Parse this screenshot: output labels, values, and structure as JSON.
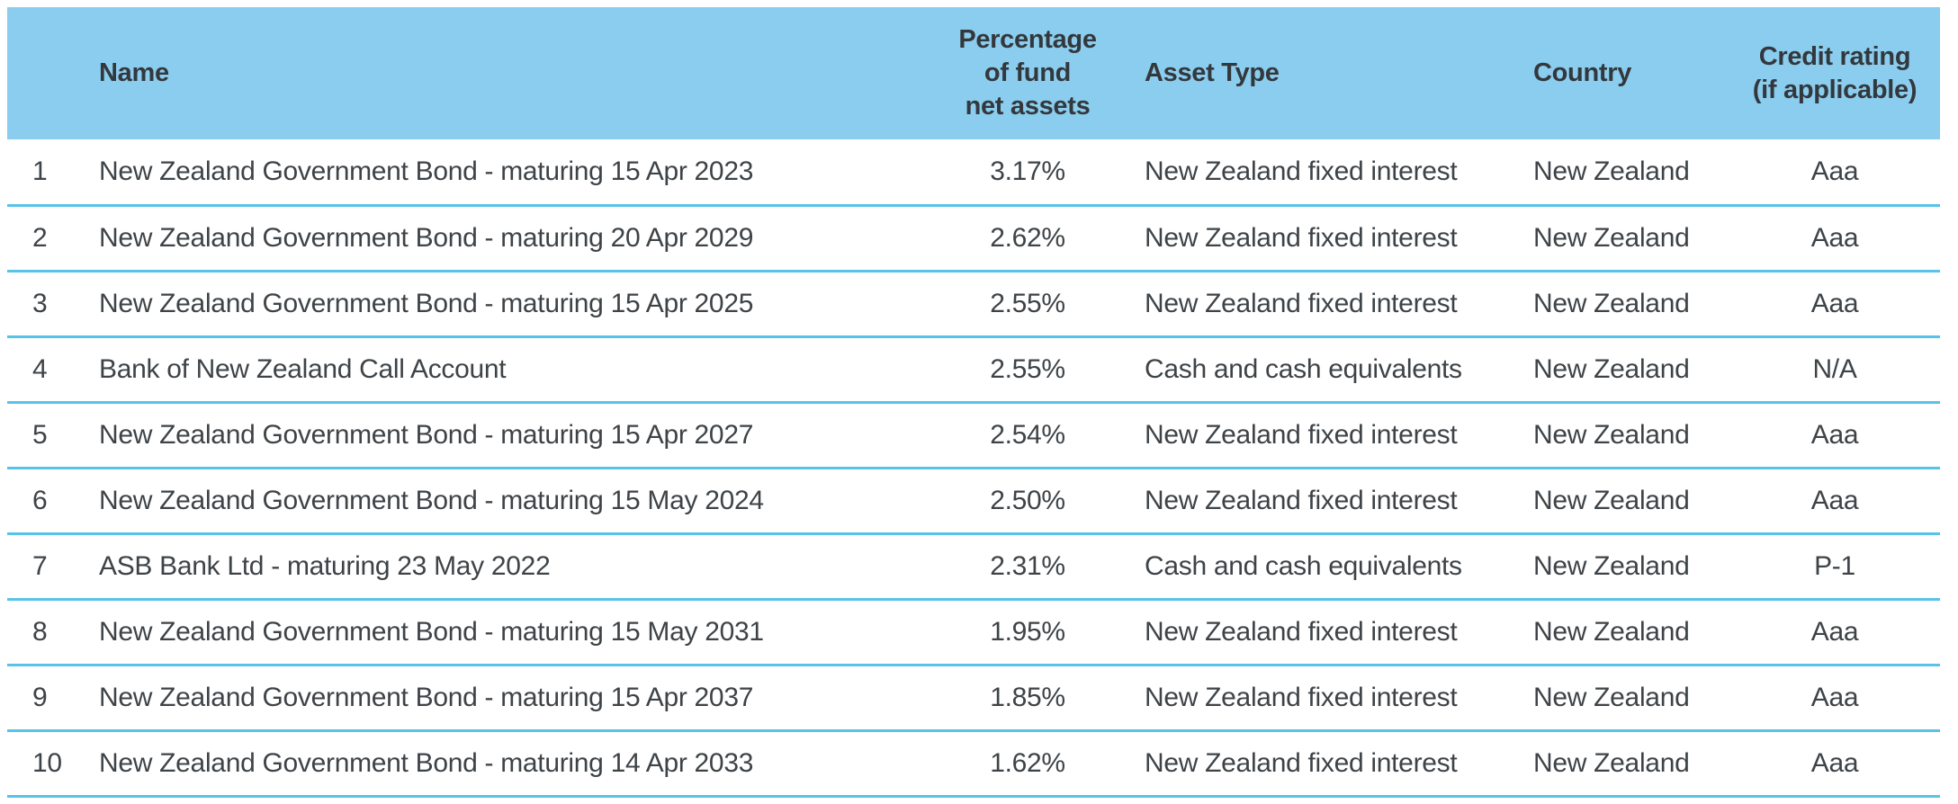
{
  "colors": {
    "header_background": "#8BCDEE",
    "row_divider": "#57C3E9",
    "header_text": "#33383D",
    "body_text": "#3E4347"
  },
  "table": {
    "headers": {
      "rank": "",
      "name": "Name",
      "percentage": "Percentage\nof fund\nnet assets",
      "asset_type": "Asset Type",
      "country": "Country",
      "credit_rating": "Credit rating\n(if applicable)"
    },
    "rows": [
      {
        "rank": "1",
        "name": "New Zealand Government Bond - maturing 15 Apr 2023",
        "percentage": "3.17%",
        "asset_type": "New Zealand fixed interest",
        "country": "New Zealand",
        "credit_rating": "Aaa"
      },
      {
        "rank": "2",
        "name": "New Zealand Government Bond - maturing 20 Apr 2029",
        "percentage": "2.62%",
        "asset_type": "New Zealand fixed interest",
        "country": "New Zealand",
        "credit_rating": "Aaa"
      },
      {
        "rank": "3",
        "name": "New Zealand Government Bond - maturing 15 Apr 2025",
        "percentage": "2.55%",
        "asset_type": "New Zealand fixed interest",
        "country": "New Zealand",
        "credit_rating": "Aaa"
      },
      {
        "rank": "4",
        "name": "Bank of New Zealand Call Account",
        "percentage": "2.55%",
        "asset_type": "Cash and cash equivalents",
        "country": "New Zealand",
        "credit_rating": "N/A"
      },
      {
        "rank": "5",
        "name": "New Zealand Government Bond - maturing 15 Apr 2027",
        "percentage": "2.54%",
        "asset_type": "New Zealand fixed interest",
        "country": "New Zealand",
        "credit_rating": "Aaa"
      },
      {
        "rank": "6",
        "name": "New Zealand Government Bond - maturing 15 May 2024",
        "percentage": "2.50%",
        "asset_type": "New Zealand fixed interest",
        "country": "New Zealand",
        "credit_rating": "Aaa"
      },
      {
        "rank": "7",
        "name": "ASB Bank Ltd - maturing 23 May 2022",
        "percentage": "2.31%",
        "asset_type": "Cash and cash equivalents",
        "country": "New Zealand",
        "credit_rating": "P-1"
      },
      {
        "rank": "8",
        "name": "New Zealand Government Bond - maturing 15 May 2031",
        "percentage": "1.95%",
        "asset_type": "New Zealand fixed interest",
        "country": "New Zealand",
        "credit_rating": "Aaa"
      },
      {
        "rank": "9",
        "name": "New Zealand Government Bond - maturing 15 Apr 2037",
        "percentage": "1.85%",
        "asset_type": "New Zealand fixed interest",
        "country": "New Zealand",
        "credit_rating": "Aaa"
      },
      {
        "rank": "10",
        "name": "New Zealand Government Bond - maturing 14 Apr 2033",
        "percentage": "1.62%",
        "asset_type": "New Zealand fixed interest",
        "country": "New Zealand",
        "credit_rating": "Aaa"
      }
    ]
  }
}
